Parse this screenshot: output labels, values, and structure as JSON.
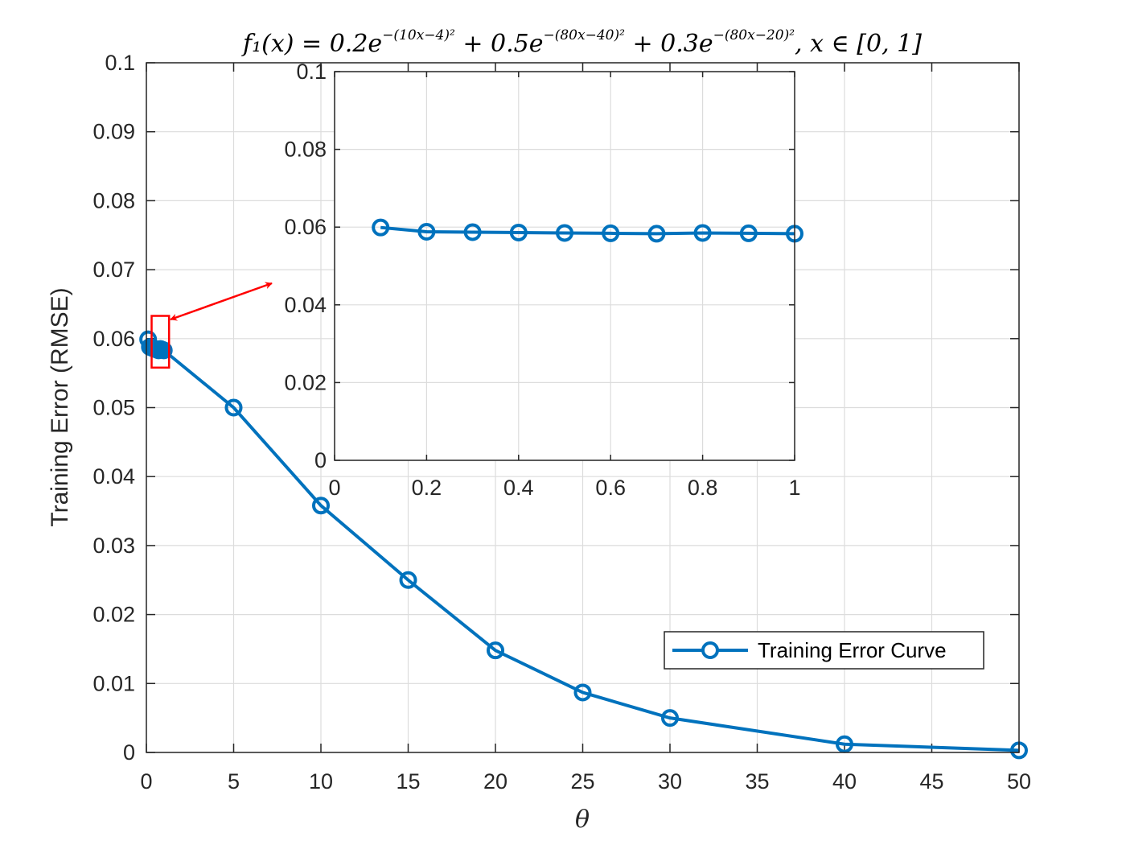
{
  "chart_data": [
    {
      "type": "line",
      "title": {
        "lhs": "f₁(x) = 0.2e",
        "exp1": "−(10x−4)²",
        "mid1": " + 0.5e",
        "exp2": "−(80x−40)²",
        "mid2": " + 0.3e",
        "exp3": "−(80x−20)²",
        "rhs": ",  x ∈ [0, 1]"
      },
      "xlabel": "θ",
      "ylabel": "Training Error (RMSE)",
      "xlim": [
        0,
        50
      ],
      "ylim": [
        0,
        0.1
      ],
      "xticks": [
        0,
        5,
        10,
        15,
        20,
        25,
        30,
        35,
        40,
        45,
        50
      ],
      "xtick_labels": [
        "0",
        "5",
        "10",
        "15",
        "20",
        "25",
        "30",
        "35",
        "40",
        "45",
        "50"
      ],
      "yticks": [
        0,
        0.01,
        0.02,
        0.03,
        0.04,
        0.05,
        0.06,
        0.07,
        0.08,
        0.09,
        0.1
      ],
      "ytick_labels": [
        "0",
        "0.01",
        "0.02",
        "0.03",
        "0.04",
        "0.05",
        "0.06",
        "0.07",
        "0.08",
        "0.09",
        "0.1"
      ],
      "grid": true,
      "legend_position": "bottom-right",
      "series": [
        {
          "name": "Training Error Curve",
          "color": "#0072BD",
          "marker": "circle",
          "x": [
            0.1,
            0.2,
            0.3,
            0.4,
            0.5,
            0.6,
            0.7,
            0.8,
            0.9,
            1,
            5,
            10,
            15,
            20,
            25,
            30,
            40,
            50
          ],
          "y": [
            0.0599,
            0.0588,
            0.0587,
            0.0586,
            0.0585,
            0.0584,
            0.0583,
            0.0585,
            0.0584,
            0.0583,
            0.05,
            0.0358,
            0.025,
            0.0148,
            0.0087,
            0.005,
            0.0012,
            0.0003
          ]
        }
      ]
    },
    {
      "type": "line",
      "role": "inset",
      "xlim": [
        0,
        1
      ],
      "ylim": [
        0,
        0.1
      ],
      "xticks": [
        0,
        0.2,
        0.4,
        0.6,
        0.8,
        1
      ],
      "xtick_labels": [
        "0",
        "0.2",
        "0.4",
        "0.6",
        "0.8",
        "1"
      ],
      "yticks": [
        0,
        0.02,
        0.04,
        0.06,
        0.08,
        0.1
      ],
      "ytick_labels": [
        "0",
        "0.02",
        "0.04",
        "0.06",
        "0.08",
        "0.1"
      ],
      "grid": true,
      "series": [
        {
          "color": "#0072BD",
          "marker": "circle",
          "x": [
            0.1,
            0.2,
            0.3,
            0.4,
            0.5,
            0.6,
            0.7,
            0.8,
            0.9,
            1
          ],
          "y": [
            0.0599,
            0.0588,
            0.0587,
            0.0586,
            0.0585,
            0.0584,
            0.0583,
            0.0585,
            0.0584,
            0.0583
          ]
        }
      ]
    }
  ],
  "annotation": {
    "zoom_box_color": "#ff0000",
    "arrow_color": "#ff0000",
    "zoom_box_xrange": [
      0.3,
      1.3
    ],
    "zoom_box_yrange": [
      0.0558,
      0.0633
    ]
  }
}
